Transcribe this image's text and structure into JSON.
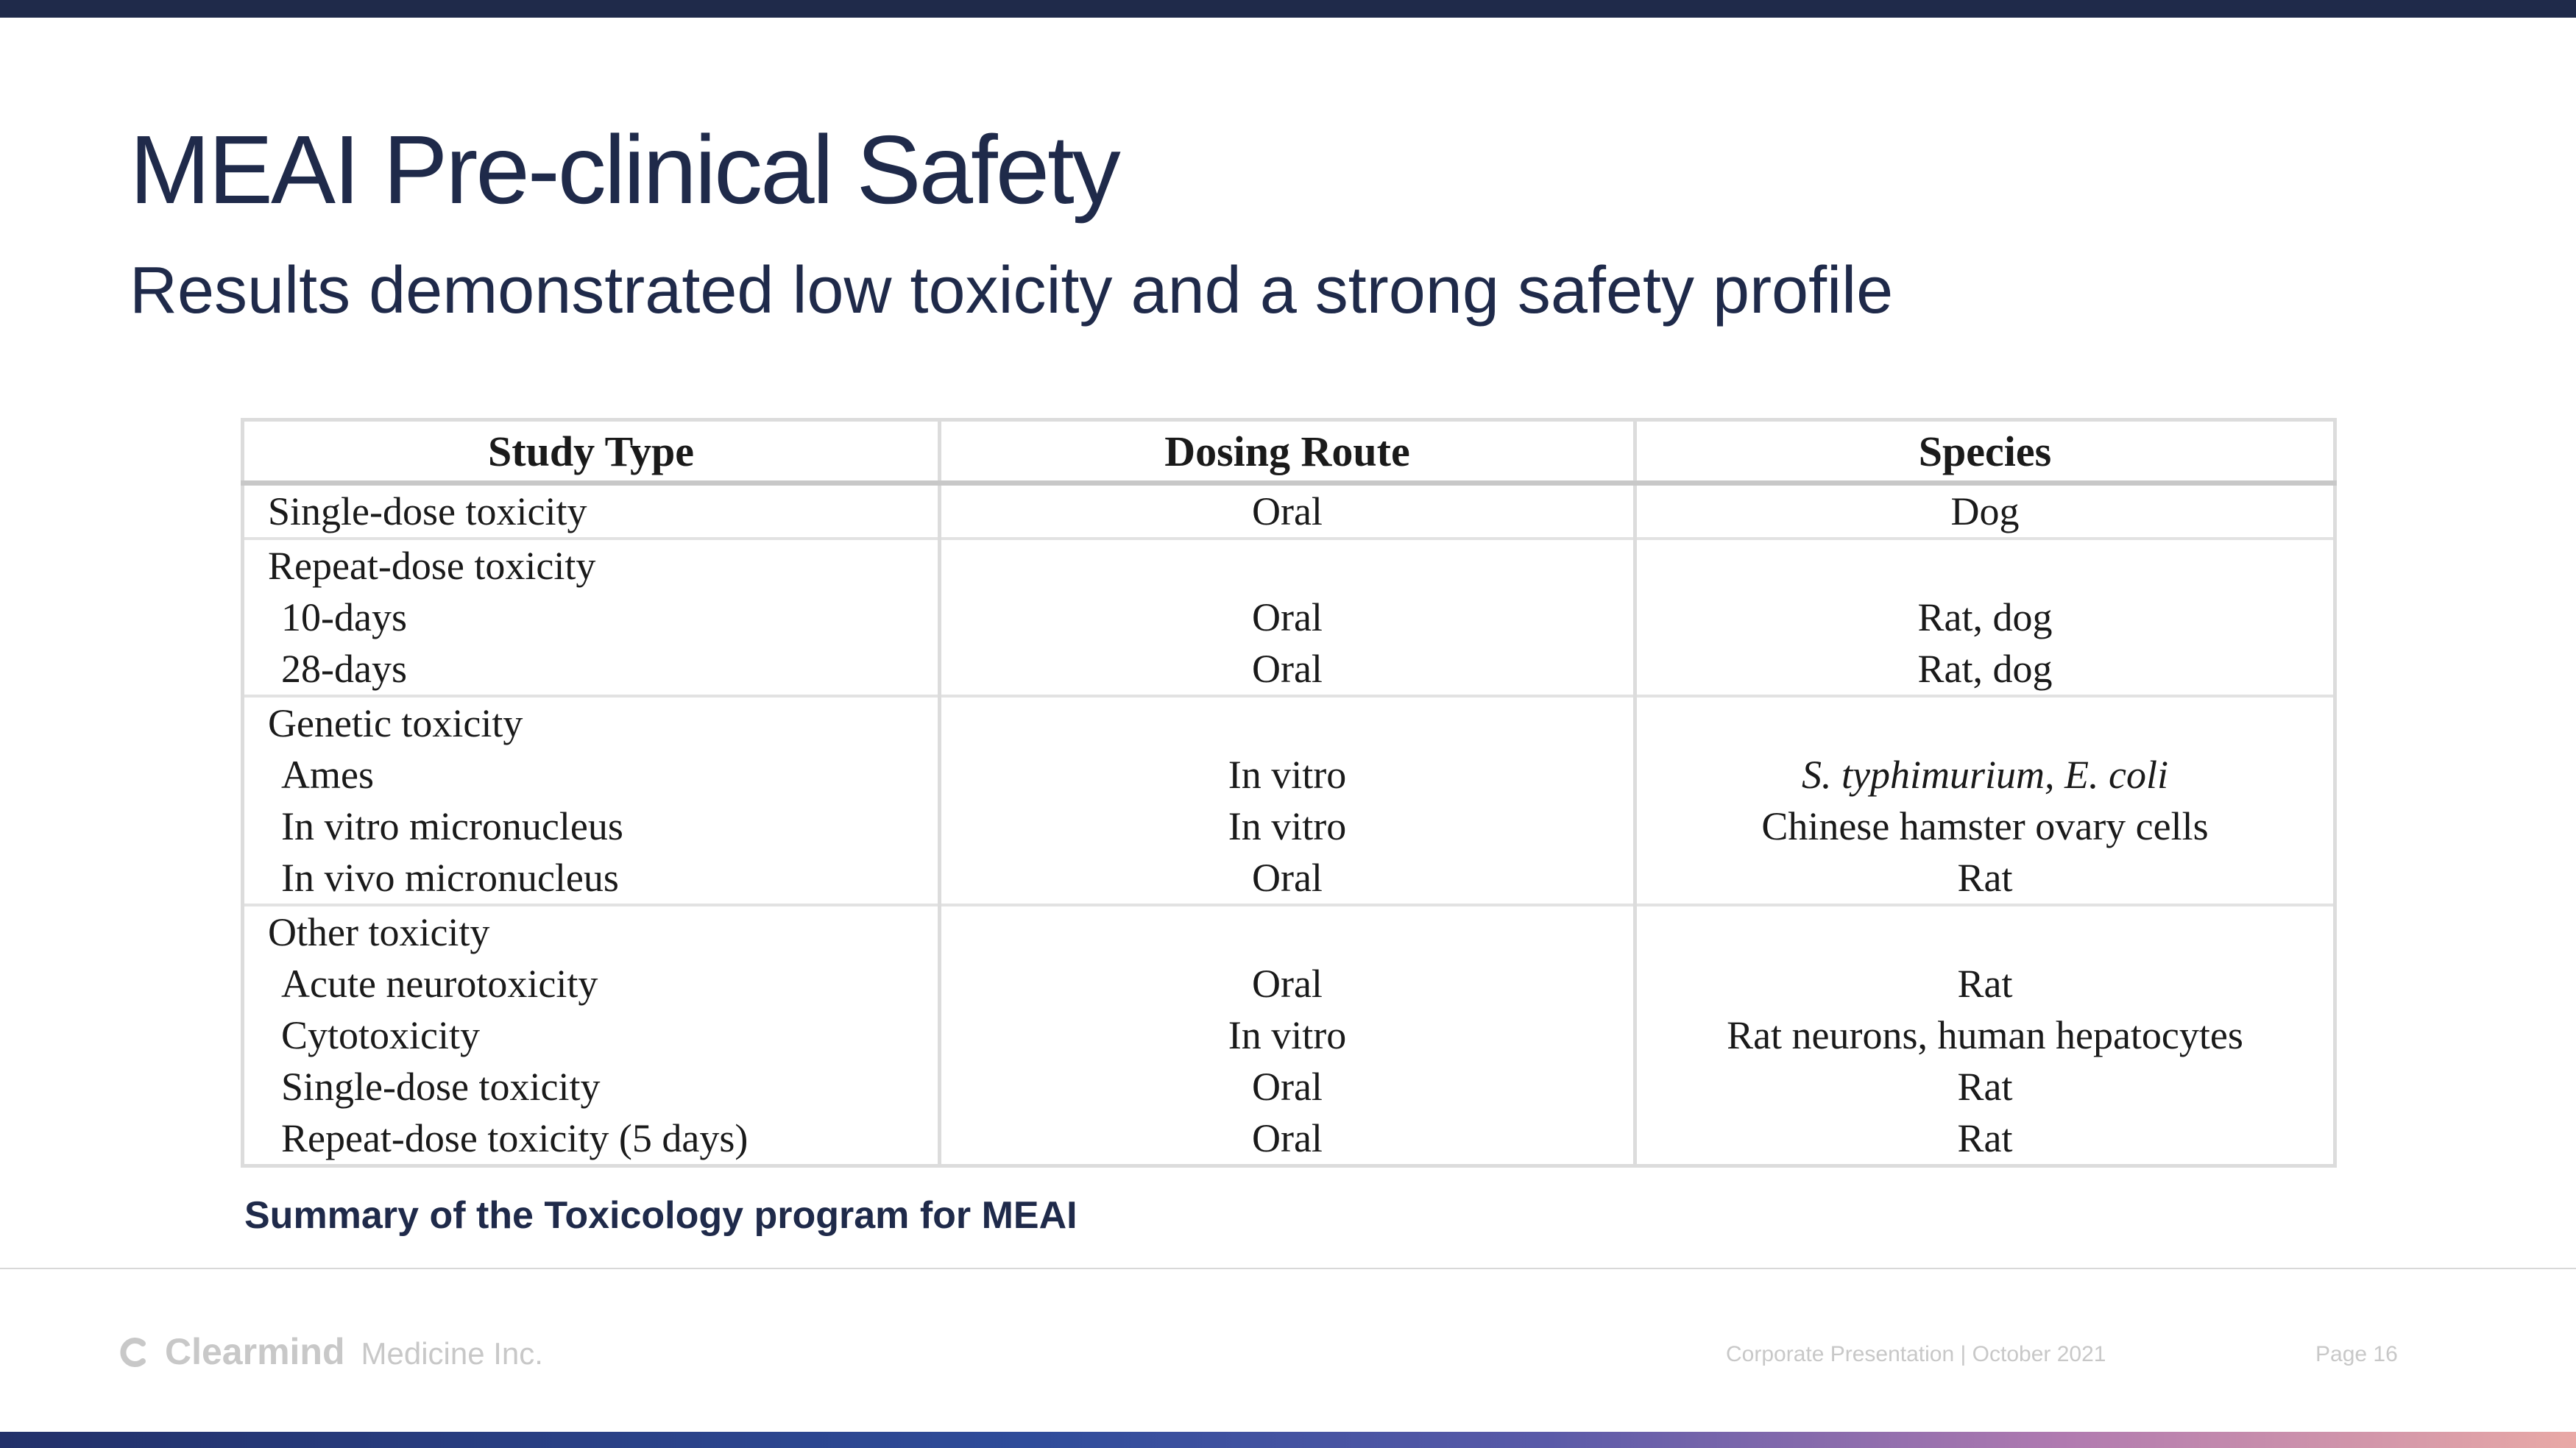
{
  "slide": {
    "title": "MEAI Pre-clinical Safety",
    "subtitle": "Results demonstrated low toxicity and a strong safety profile"
  },
  "table": {
    "headers": [
      "Study Type",
      "Dosing Route",
      "Species"
    ],
    "groups": [
      {
        "lines": [
          {
            "study": "Single-dose toxicity",
            "route": "Oral",
            "species": "Dog"
          }
        ]
      },
      {
        "lines": [
          {
            "study": "Repeat-dose toxicity",
            "route": "",
            "species": ""
          },
          {
            "study": "10-days",
            "route": "Oral",
            "species": "Rat, dog"
          },
          {
            "study": "28-days",
            "route": "Oral",
            "species": "Rat, dog"
          }
        ]
      },
      {
        "lines": [
          {
            "study": "Genetic toxicity",
            "route": "",
            "species": ""
          },
          {
            "study": "Ames",
            "route": "In vitro",
            "species": "S. typhimurium, E. coli"
          },
          {
            "study": "In vitro micronucleus",
            "route": "In vitro",
            "species": "Chinese hamster ovary cells"
          },
          {
            "study": "In vivo micronucleus",
            "route": "Oral",
            "species": "Rat"
          }
        ]
      },
      {
        "lines": [
          {
            "study": "Other toxicity",
            "route": "",
            "species": ""
          },
          {
            "study": "Acute neurotoxicity",
            "route": "Oral",
            "species": "Rat"
          },
          {
            "study": "Cytotoxicity",
            "route": "In vitro",
            "species": "Rat neurons, human hepatocytes"
          },
          {
            "study": "Single-dose toxicity",
            "route": "Oral",
            "species": "Rat"
          },
          {
            "study": "Repeat-dose toxicity (5 days)",
            "route": "Oral",
            "species": "Rat"
          }
        ]
      }
    ]
  },
  "caption": "Summary of the Toxicology program for MEAI",
  "footer": {
    "logo_word": "Clearmind",
    "logo_sub": "Medicine Inc.",
    "presentation": "Corporate Presentation",
    "separator": "|",
    "date": "October 2021",
    "page": "Page 16"
  },
  "icons": {
    "logo": "clearmind-logo-icon"
  },
  "colors": {
    "navy": "#1f2a4a",
    "footer_gray": "#c8c8c8",
    "table_border": "#dcdcdc",
    "gradient": [
      "#23316a",
      "#2f4c9a",
      "#5a5aa8",
      "#b07ab0",
      "#e9a9a6"
    ]
  }
}
